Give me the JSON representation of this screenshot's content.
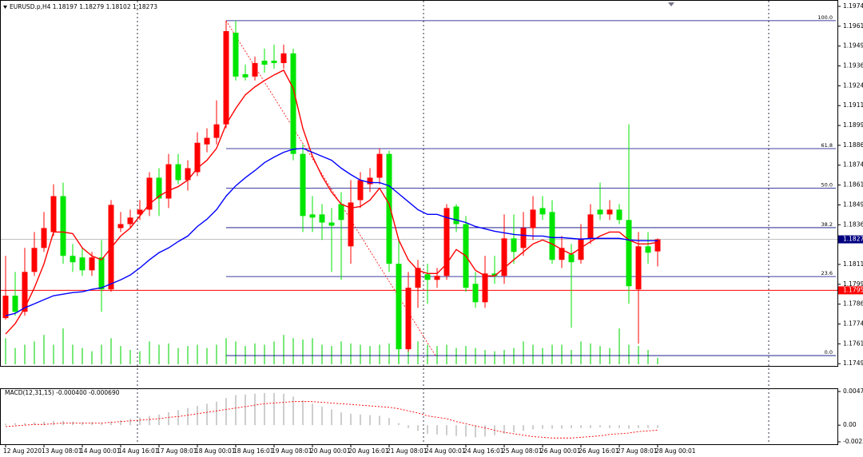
{
  "chart_data": [
    {
      "type": "candlestick",
      "title": "EURUSD.p,H4  1.18197 1.18279 1.18102 1.18273",
      "categories": [
        "12 Aug 2020",
        null,
        null,
        null,
        "13 Aug 08:01",
        null,
        null,
        null,
        "14 Aug 00:01",
        null,
        null,
        null,
        "14 Aug 16:01",
        null,
        null,
        null,
        "17 Aug 08:01",
        null,
        null,
        null,
        "18 Aug 00:01",
        null,
        null,
        null,
        "18 Aug 16:01",
        null,
        null,
        null,
        "19 Aug 08:01",
        null,
        null,
        null,
        "20 Aug 00:01",
        null,
        null,
        null,
        "20 Aug 16:01",
        null,
        null,
        null,
        "21 Aug 08:01",
        null,
        null,
        null,
        "24 Aug 00:01",
        null,
        null,
        null,
        "24 Aug 16:01",
        null,
        null,
        null,
        "25 Aug 08:01",
        null,
        null,
        null,
        "26 Aug 00:01",
        null,
        null,
        null,
        "26 Aug 16:01",
        null,
        null,
        null,
        "27 Aug 08:01",
        null,
        null,
        null,
        "28 Aug 00:01"
      ],
      "open": [
        1.17777,
        1.17918,
        1.17817,
        1.18068,
        1.18219,
        1.18319,
        1.18545,
        1.18169,
        1.18159,
        1.18078,
        1.18159,
        1.17958,
        1.18344,
        1.18369,
        1.1843,
        1.1846,
        1.18661,
        1.1853,
        1.18746,
        1.18646,
        1.18696,
        1.18871,
        1.18912,
        1.18997,
        1.19574,
        1.19313,
        1.19298,
        1.19398,
        1.19398,
        1.19383,
        1.19444,
        1.18811,
        1.1843,
        1.1843,
        1.18379,
        1.18495,
        1.18229,
        1.1852,
        1.1862,
        1.18661,
        1.18811,
        1.18119,
        1.17581,
        1.17968,
        1.18053,
        1.18018,
        1.18043,
        1.1848,
        1.18369,
        1.17993,
        1.17877,
        1.18058,
        1.18043,
        1.18279,
        1.18219,
        1.18344,
        1.1847,
        1.18445,
        1.18144,
        1.18179,
        1.18144,
        1.18279,
        1.1846,
        1.1843,
        1.1846,
        1.18395,
        1.17958,
        1.18229,
        1.18197
      ],
      "high": [
        1.18169,
        1.18068,
        1.18219,
        1.18319,
        1.18445,
        1.1862,
        1.1863,
        1.18244,
        1.18219,
        1.18194,
        1.18269,
        1.1852,
        1.18445,
        1.1846,
        1.1852,
        1.18696,
        1.18721,
        1.18811,
        1.18811,
        1.18771,
        1.18947,
        1.18972,
        1.19148,
        1.1965,
        1.1965,
        1.19373,
        1.19424,
        1.19474,
        1.19499,
        1.19499,
        1.19474,
        1.18871,
        1.18545,
        1.18495,
        1.1847,
        1.1857,
        1.18646,
        1.18696,
        1.18721,
        1.18846,
        1.18831,
        1.18269,
        1.18068,
        1.18144,
        1.18119,
        1.18093,
        1.18495,
        1.18495,
        1.1842,
        1.18068,
        1.18169,
        1.18169,
        1.1843,
        1.1843,
        1.18445,
        1.18545,
        1.18545,
        1.1852,
        1.18294,
        1.18244,
        1.18369,
        1.18495,
        1.1863,
        1.1852,
        1.18495,
        1.18997,
        1.18319,
        1.18319,
        1.18279
      ],
      "low": [
        1.17767,
        1.17792,
        1.17792,
        1.18043,
        1.18194,
        1.18294,
        1.18119,
        1.18068,
        1.18043,
        1.18043,
        1.17817,
        1.17943,
        1.18319,
        1.18344,
        1.18395,
        1.1842,
        1.1842,
        1.1847,
        1.1862,
        1.1858,
        1.18671,
        1.18821,
        1.18871,
        1.18972,
        1.19273,
        1.19273,
        1.19273,
        1.19323,
        1.19348,
        1.19348,
        1.18771,
        1.18319,
        1.18319,
        1.18269,
        1.18068,
        1.18018,
        1.18119,
        1.1847,
        1.1857,
        1.1862,
        1.18068,
        1.17491,
        1.17566,
        1.17842,
        1.17867,
        1.17968,
        1.18018,
        1.18319,
        1.17943,
        1.17842,
        1.17842,
        1.17993,
        1.17993,
        1.18119,
        1.18169,
        1.18269,
        1.18395,
        1.18119,
        1.18093,
        1.17717,
        1.18119,
        1.18244,
        1.18395,
        1.18395,
        1.18369,
        1.17867,
        1.17616,
        1.18119,
        1.18102
      ],
      "close": [
        1.17918,
        1.17817,
        1.18068,
        1.18219,
        1.18344,
        1.18545,
        1.18169,
        1.18129,
        1.18078,
        1.18159,
        1.17958,
        1.1849,
        1.18369,
        1.1841,
        1.1846,
        1.18661,
        1.1853,
        1.18746,
        1.18646,
        1.18721,
        1.18881,
        1.18912,
        1.18997,
        1.19584,
        1.19298,
        1.19293,
        1.19383,
        1.19373,
        1.19383,
        1.19444,
        1.18811,
        1.1842,
        1.1841,
        1.18379,
        1.18359,
        1.18395,
        1.18505,
        1.18646,
        1.18661,
        1.18811,
        1.18119,
        1.17581,
        1.17968,
        1.18093,
        1.18018,
        1.18043,
        1.1847,
        1.18369,
        1.17968,
        1.17877,
        1.18058,
        1.18043,
        1.18279,
        1.18194,
        1.18344,
        1.1846,
        1.1843,
        1.18144,
        1.18219,
        1.18129,
        1.18279,
        1.1843,
        1.1843,
        1.1846,
        1.18395,
        1.17978,
        1.18229,
        1.18189,
        1.18273
      ],
      "up_color": "#ff0000",
      "down_color": "#00e600",
      "moving_averages": [
        {
          "color": "#ff0000",
          "values": [
            1.17677,
            1.17742,
            1.17842,
            1.17968,
            1.18118,
            1.18319,
            1.18319,
            1.18309,
            1.18219,
            1.18169,
            1.18144,
            1.18219,
            1.18294,
            1.18344,
            1.1842,
            1.18495,
            1.18545,
            1.1858,
            1.18605,
            1.18646,
            1.18721,
            1.18771,
            1.18846,
            1.18997,
            1.19097,
            1.19183,
            1.19233,
            1.19273,
            1.19308,
            1.19338,
            1.19223,
            1.18972,
            1.18796,
            1.18671,
            1.1857,
            1.18495,
            1.1847,
            1.1848,
            1.1852,
            1.18595,
            1.18495,
            1.18269,
            1.18144,
            1.18078,
            1.18058,
            1.18058,
            1.18119,
            1.18209,
            1.18169,
            1.18078,
            1.18043,
            1.18043,
            1.18093,
            1.18144,
            1.18194,
            1.18244,
            1.18269,
            1.18244,
            1.18209,
            1.18179,
            1.18219,
            1.18259,
            1.18294,
            1.18319,
            1.18319,
            1.18269,
            1.18244,
            1.18244,
            1.18254
          ]
        },
        {
          "color": "#0000ff",
          "values": [
            1.17792,
            1.17807,
            1.17842,
            1.17867,
            1.17893,
            1.17918,
            1.17928,
            1.17938,
            1.17943,
            1.17958,
            1.17968,
            1.17993,
            1.18018,
            1.18048,
            1.18093,
            1.18144,
            1.18189,
            1.18219,
            1.18259,
            1.18294,
            1.18354,
            1.184,
            1.1846,
            1.18545,
            1.1861,
            1.18661,
            1.18706,
            1.18756,
            1.18791,
            1.18821,
            1.18841,
            1.18846,
            1.18821,
            1.18796,
            1.18771,
            1.18721,
            1.18681,
            1.18646,
            1.1863,
            1.1863,
            1.1861,
            1.1856,
            1.1851,
            1.1846,
            1.1843,
            1.1843,
            1.1841,
            1.18395,
            1.18379,
            1.18354,
            1.18339,
            1.18324,
            1.18314,
            1.18304,
            1.18299,
            1.18294,
            1.18294,
            1.18284,
            1.18284,
            1.18279,
            1.18274,
            1.18279,
            1.18279,
            1.18279,
            1.18279,
            1.18269,
            1.18264,
            1.18264,
            1.18264
          ]
        }
      ],
      "volume": {
        "color": "#33dd33",
        "values": [
          40,
          25,
          30,
          35,
          45,
          30,
          55,
          30,
          25,
          20,
          30,
          40,
          28,
          22,
          20,
          35,
          30,
          32,
          25,
          28,
          30,
          25,
          30,
          40,
          35,
          28,
          32,
          30,
          35,
          45,
          40,
          38,
          40,
          30,
          28,
          35,
          32,
          30,
          28,
          30,
          32,
          45,
          45,
          35,
          30,
          28,
          30,
          25,
          28,
          25,
          22,
          20,
          22,
          25,
          35,
          30,
          25,
          30,
          30,
          22,
          35,
          32,
          28,
          25,
          55,
          30,
          28,
          22,
          10
        ]
      },
      "fibonacci": {
        "color": "#000080",
        "high": 1.1965,
        "low": 1.17541,
        "levels": [
          {
            "value": 100,
            "label": "100.0"
          },
          61.8,
          {
            "value": 50,
            "label": "50.0"
          },
          38.2,
          23.6,
          {
            "value": 0,
            "label": "0.0"
          }
        ]
      },
      "price_lines": [
        {
          "value": 1.18273,
          "color": "#000080",
          "line_color": "#b8b8b8"
        },
        {
          "value": 1.17952,
          "color": "#ff0000",
          "line_color": "#ff0000"
        }
      ],
      "ylim": [
        1.17476,
        1.19775
      ],
      "yticks": [
        {
          "value": 1.1974,
          "label": "1.19740"
        },
        1.19615,
        {
          "value": 1.1949,
          "label": "1.19490"
        },
        1.19365,
        {
          "value": 1.1924,
          "label": "1.19240"
        },
        1.19115,
        {
          "value": 1.1899,
          "label": "1.18990"
        },
        1.18865,
        {
          "value": 1.1874,
          "label": "1.18740"
        },
        1.18615,
        {
          "value": 1.1849,
          "label": "1.18490"
        },
        1.18365,
        {
          "value": 1.18115,
          "label": "1.18115"
        },
        {
          "value": 1.1799,
          "label": "1.17990"
        },
        1.17865,
        {
          "value": 1.1774,
          "label": "1.17740"
        },
        1.17615,
        {
          "value": 1.1749,
          "label": "1.17490"
        }
      ]
    },
    {
      "type": "macd",
      "title": "MACD(12,31,15) -0.000400 -0.000690",
      "histogram": {
        "color": "#b4b4b4",
        "values": [
          0.0002,
          0.0003,
          0.0003,
          0.0004,
          0.0005,
          0.0006,
          0.0006,
          0.0005,
          0.0004,
          0.0004,
          0.0003,
          0.0005,
          0.0007,
          0.0009,
          0.0011,
          0.0013,
          0.0015,
          0.0018,
          0.0021,
          0.0024,
          0.0027,
          0.003,
          0.0033,
          0.0038,
          0.0042,
          0.0043,
          0.0044,
          0.0045,
          0.0045,
          0.0044,
          0.004,
          0.0035,
          0.003,
          0.0026,
          0.0022,
          0.0018,
          0.0016,
          0.0015,
          0.0014,
          0.0013,
          0.001,
          0.0003,
          -0.0004,
          -0.0008,
          -0.0012,
          -0.0013,
          -0.0014,
          -0.0015,
          -0.0016,
          -0.0017,
          -0.0016,
          -0.0014,
          -0.0012,
          -0.001,
          -0.0008,
          -0.0006,
          -0.0005,
          -0.0005,
          -0.0005,
          -0.0004,
          -0.0004,
          -0.0004,
          -0.0003,
          -0.0004,
          -0.0004,
          -0.0005,
          -0.0004,
          -0.0004,
          -0.0004
        ]
      },
      "signal": {
        "color": "#ff0000",
        "values": [
          -0.0002,
          -0.0001,
          0,
          0.0001,
          0.0001,
          0.0002,
          0.0003,
          0.0003,
          0.0003,
          0.0003,
          0.0003,
          0.0004,
          0.0005,
          0.0006,
          0.0007,
          0.0008,
          0.0009,
          0.0011,
          0.0012,
          0.0014,
          0.0016,
          0.0018,
          0.002,
          0.0022,
          0.0024,
          0.0026,
          0.0028,
          0.003,
          0.0031,
          0.0032,
          0.0033,
          0.0033,
          0.0033,
          0.0032,
          0.0031,
          0.003,
          0.0029,
          0.0028,
          0.0027,
          0.0026,
          0.0025,
          0.0023,
          0.002,
          0.0017,
          0.0013,
          0.0011,
          0.0009,
          0.0005,
          0.0002,
          -0.0001,
          -0.0004,
          -0.0007,
          -0.001,
          -0.0012,
          -0.0014,
          -0.0016,
          -0.0017,
          -0.0018,
          -0.0018,
          -0.0018,
          -0.0017,
          -0.0016,
          -0.0015,
          -0.0013,
          -0.0012,
          -0.0011,
          -0.0009,
          -0.0008,
          -0.00069
        ]
      },
      "ylim": [
        -0.00233,
        0.004712
      ],
      "yticks": [
        0.004712,
        {
          "value": 0,
          "label": "0.00"
        },
        -0.00233
      ]
    }
  ]
}
